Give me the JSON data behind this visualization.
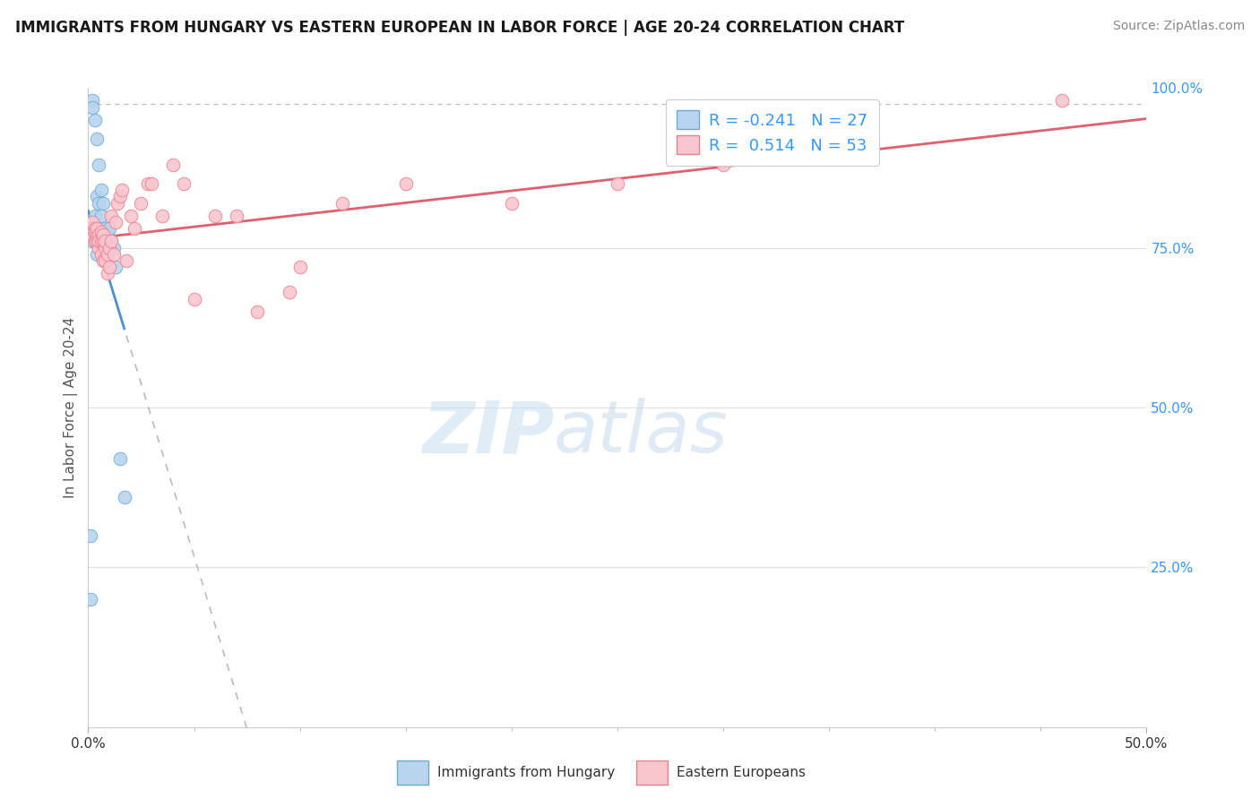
{
  "title": "IMMIGRANTS FROM HUNGARY VS EASTERN EUROPEAN IN LABOR FORCE | AGE 20-24 CORRELATION CHART",
  "source": "Source: ZipAtlas.com",
  "ylabel_label": "In Labor Force | Age 20-24",
  "xmin": 0.0,
  "xmax": 0.5,
  "ymin": 0.0,
  "ymax": 1.0,
  "hungary_R": -0.241,
  "hungary_N": 27,
  "eastern_R": 0.514,
  "eastern_N": 53,
  "hungary_fill_color": "#b8d4ee",
  "hungary_edge_color": "#6aaed6",
  "eastern_fill_color": "#f9c6ce",
  "eastern_edge_color": "#f08090",
  "hungary_line_color": "#4a90d9",
  "eastern_line_color": "#e06070",
  "dotted_line_color": "#bbbbbb",
  "hungary_x": [
    0.001,
    0.002,
    0.002,
    0.003,
    0.003,
    0.004,
    0.004,
    0.005,
    0.005,
    0.006,
    0.006,
    0.007,
    0.007,
    0.008,
    0.009,
    0.01,
    0.011,
    0.012,
    0.013,
    0.015,
    0.017,
    0.002,
    0.003,
    0.003,
    0.004,
    0.001,
    0.001
  ],
  "hungary_y": [
    0.775,
    0.98,
    0.97,
    0.95,
    0.8,
    0.92,
    0.83,
    0.88,
    0.82,
    0.84,
    0.8,
    0.82,
    0.77,
    0.78,
    0.77,
    0.78,
    0.76,
    0.75,
    0.72,
    0.42,
    0.36,
    0.76,
    0.775,
    0.76,
    0.74,
    0.2,
    0.3
  ],
  "eastern_x": [
    0.001,
    0.002,
    0.002,
    0.003,
    0.003,
    0.003,
    0.004,
    0.004,
    0.004,
    0.005,
    0.005,
    0.005,
    0.006,
    0.006,
    0.006,
    0.007,
    0.007,
    0.007,
    0.008,
    0.008,
    0.008,
    0.009,
    0.009,
    0.01,
    0.01,
    0.011,
    0.011,
    0.012,
    0.013,
    0.014,
    0.015,
    0.016,
    0.018,
    0.02,
    0.022,
    0.025,
    0.028,
    0.03,
    0.035,
    0.04,
    0.045,
    0.05,
    0.06,
    0.07,
    0.08,
    0.095,
    0.1,
    0.12,
    0.15,
    0.2,
    0.25,
    0.3,
    0.46
  ],
  "eastern_y": [
    0.77,
    0.78,
    0.79,
    0.76,
    0.78,
    0.775,
    0.76,
    0.77,
    0.78,
    0.75,
    0.77,
    0.76,
    0.74,
    0.76,
    0.775,
    0.73,
    0.76,
    0.77,
    0.73,
    0.75,
    0.76,
    0.71,
    0.74,
    0.72,
    0.75,
    0.76,
    0.8,
    0.74,
    0.79,
    0.82,
    0.83,
    0.84,
    0.73,
    0.8,
    0.78,
    0.82,
    0.85,
    0.85,
    0.8,
    0.88,
    0.85,
    0.67,
    0.8,
    0.8,
    0.65,
    0.68,
    0.72,
    0.82,
    0.85,
    0.82,
    0.85,
    0.88,
    0.98
  ],
  "watermark_zip": "ZIP",
  "watermark_atlas": "atlas",
  "legend_entries": [
    "Immigrants from Hungary",
    "Eastern Europeans"
  ],
  "background_color": "#ffffff",
  "title_fontsize": 12,
  "source_fontsize": 10,
  "tick_label_color": "#3399ff",
  "ylabel_color": "#555555",
  "grid_line_color": "#e0e0e0"
}
